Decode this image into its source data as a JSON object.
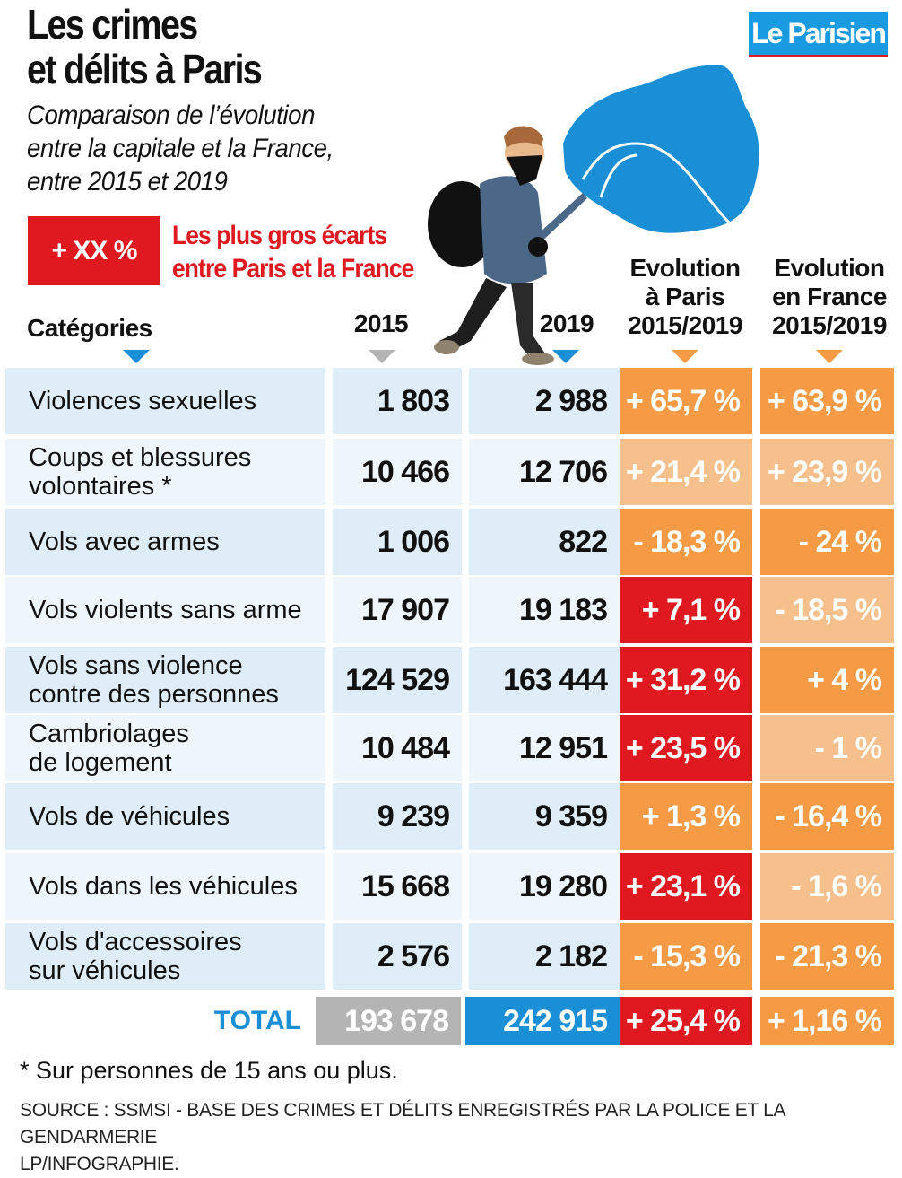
{
  "header": {
    "title_line1": "Les crimes",
    "title_line2": "et délits à Paris",
    "subtitle_line1": "Comparaison de l’évolution",
    "subtitle_line2": "entre la capitale et la France,",
    "subtitle_line3": "entre 2015 et 2019",
    "logo": "Le Parisien"
  },
  "legend": {
    "box_label": "+ XX %",
    "text_line1": "Les plus gros écarts",
    "text_line2": "entre Paris et la France",
    "highlight_color": "#e0181f"
  },
  "colors": {
    "highlight": "#e0181f",
    "orange": "#f59a45",
    "light_orange": "#f5c08c",
    "row_blue": "#deedf8",
    "row_light": "#eef6fc",
    "total_2015": "#b4b4b4",
    "total_2019": "#1a8fd6"
  },
  "chart_data": {
    "type": "table",
    "title": "Les crimes et délits à Paris",
    "subtitle": "Comparaison de l’évolution entre la capitale et la France, entre 2015 et 2019",
    "columns": [
      "Catégories",
      "2015",
      "2019",
      "Evolution à Paris 2015/2019",
      "Evolution en France 2015/2019"
    ],
    "column_headers": {
      "categories": "Catégories",
      "y2015": "2015",
      "y2019": "2019",
      "paris": [
        "Evolution",
        "à Paris",
        "2015/2019"
      ],
      "france": [
        "Evolution",
        "en France",
        "2015/2019"
      ]
    },
    "rows": [
      {
        "category": [
          "Violences sexuelles"
        ],
        "v2015": "1 803",
        "v2019": "2 988",
        "paris": "+ 65,7 %",
        "france": "+ 63,9 %",
        "paris_style": "orange",
        "france_style": "orange"
      },
      {
        "category": [
          "Coups et blessures",
          "volontaires *"
        ],
        "v2015": "10 466",
        "v2019": "12 706",
        "paris": "+ 21,4 %",
        "france": "+ 23,9 %",
        "paris_style": "light_orange",
        "france_style": "light_orange"
      },
      {
        "category": [
          "Vols avec armes"
        ],
        "v2015": "1 006",
        "v2019": "822",
        "paris": "- 18,3 %",
        "france": "- 24 %",
        "paris_style": "orange",
        "france_style": "orange"
      },
      {
        "category": [
          "Vols violents sans arme"
        ],
        "v2015": "17 907",
        "v2019": "19 183",
        "paris": "+ 7,1 %",
        "france": "- 18,5 %",
        "paris_style": "highlight",
        "france_style": "light_orange"
      },
      {
        "category": [
          "Vols sans violence",
          "contre des personnes"
        ],
        "v2015": "124 529",
        "v2019": "163 444",
        "paris": "+ 31,2 %",
        "france": "+ 4 %",
        "paris_style": "highlight",
        "france_style": "orange"
      },
      {
        "category": [
          "Cambriolages",
          "de logement"
        ],
        "v2015": "10 484",
        "v2019": "12 951",
        "paris": "+ 23,5 %",
        "france": "- 1 %",
        "paris_style": "highlight",
        "france_style": "light_orange"
      },
      {
        "category": [
          "Vols de véhicules"
        ],
        "v2015": "9 239",
        "v2019": "9 359",
        "paris": "+ 1,3 %",
        "france": "- 16,4 %",
        "paris_style": "orange",
        "france_style": "orange"
      },
      {
        "category": [
          "Vols dans les véhicules"
        ],
        "v2015": "15 668",
        "v2019": "19 280",
        "paris": "+ 23,1 %",
        "france": "- 1,6 %",
        "paris_style": "highlight",
        "france_style": "light_orange"
      },
      {
        "category": [
          "Vols d'accessoires",
          "sur véhicules"
        ],
        "v2015": "2 576",
        "v2019": "2 182",
        "paris": "- 15,3 %",
        "france": "- 21,3 %",
        "paris_style": "orange",
        "france_style": "orange"
      }
    ],
    "total": {
      "label": "TOTAL",
      "v2015": "193 678",
      "v2019": "242 915",
      "paris": "+ 25,4 %",
      "france": "+ 1,16 %"
    }
  },
  "footer": {
    "note": "* Sur personnes de 15 ans ou plus.",
    "source_line1": "SOURCE : SSMSI - BASE DES CRIMES ET DÉLITS ENREGISTRÉS PAR LA POLICE ET LA GENDARMERIE",
    "source_line2": "LP/INFOGRAPHIE."
  }
}
